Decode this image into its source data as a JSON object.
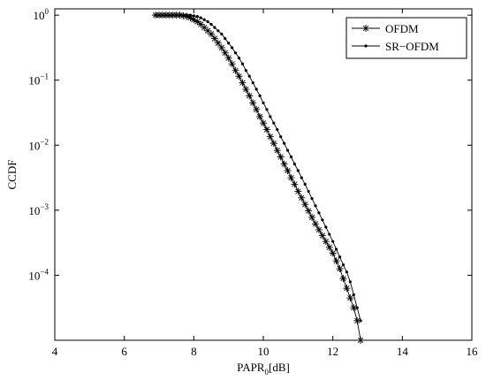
{
  "chart_data": {
    "type": "line",
    "xlabel": {
      "text": "PAPR",
      "subscript": "0",
      "suffix": "[dB]"
    },
    "ylabel": "CCDF",
    "log_y": true,
    "grid": false,
    "legend": "upper right",
    "xlim": [
      4,
      16
    ],
    "xticks": [
      4,
      6,
      8,
      10,
      12,
      14,
      16
    ],
    "ylim": [
      1e-05,
      1.25
    ],
    "yticks": [
      {
        "value": 1,
        "label": "10",
        "exponent": "0"
      },
      {
        "value": 0.1,
        "label": "10",
        "exponent": "−1"
      },
      {
        "value": 0.01,
        "label": "10",
        "exponent": "−2"
      },
      {
        "value": 0.001,
        "label": "10",
        "exponent": "−3"
      },
      {
        "value": 0.0001,
        "label": "10",
        "exponent": "−4"
      }
    ],
    "x": [
      6.9,
      7.0,
      7.1,
      7.2,
      7.3,
      7.4,
      7.5,
      7.6,
      7.7,
      7.8,
      7.9,
      8.0,
      8.1,
      8.2,
      8.3,
      8.4,
      8.5,
      8.6,
      8.7,
      8.8,
      8.9,
      9.0,
      9.1,
      9.2,
      9.3,
      9.4,
      9.5,
      9.6,
      9.7,
      9.8,
      9.9,
      10.0,
      10.1,
      10.2,
      10.3,
      10.4,
      10.5,
      10.6,
      10.7,
      10.8,
      10.9,
      11.0,
      11.1,
      11.2,
      11.3,
      11.4,
      11.5,
      11.6,
      11.7,
      11.8,
      11.9,
      12.0,
      12.1,
      12.2,
      12.3,
      12.4,
      12.5,
      12.6,
      12.7,
      12.8
    ],
    "series": [
      {
        "name": "OFDM",
        "color": "#000000",
        "marker": "asterisk",
        "values": [
          1,
          1,
          1,
          1,
          1,
          1,
          1,
          1,
          0.977,
          0.955,
          0.912,
          0.851,
          0.794,
          0.724,
          0.646,
          0.575,
          0.513,
          0.437,
          0.372,
          0.316,
          0.263,
          0.219,
          0.178,
          0.141,
          0.115,
          0.0912,
          0.0724,
          0.0575,
          0.0447,
          0.0355,
          0.0275,
          0.0219,
          0.0174,
          0.0135,
          0.0107,
          0.00832,
          0.00661,
          0.00513,
          0.00407,
          0.00316,
          0.00251,
          0.00195,
          0.00155,
          0.00123,
          0.000977,
          0.000776,
          0.000617,
          0.000501,
          0.000407,
          0.000331,
          0.000269,
          0.000219,
          0.000166,
          0.000126,
          8.91e-05,
          6.31e-05,
          4.47e-05,
          3.16e-05,
          2e-05,
          1e-05
        ]
      },
      {
        "name": "SR−OFDM",
        "color": "#000000",
        "marker": "dot",
        "values": [
          1,
          1,
          1,
          1,
          1,
          1,
          1,
          1,
          1,
          1,
          1,
          0.977,
          0.955,
          0.912,
          0.851,
          0.794,
          0.724,
          0.646,
          0.575,
          0.513,
          0.437,
          0.372,
          0.316,
          0.263,
          0.219,
          0.178,
          0.141,
          0.115,
          0.0912,
          0.0724,
          0.0575,
          0.0447,
          0.0355,
          0.0275,
          0.0219,
          0.0174,
          0.0135,
          0.0107,
          0.00832,
          0.00661,
          0.00513,
          0.00407,
          0.00316,
          0.00251,
          0.00195,
          0.00151,
          0.00117,
          0.000912,
          0.000708,
          0.00055,
          0.000427,
          0.000331,
          0.000251,
          0.000191,
          0.000145,
          0.000112,
          7.94e-05,
          5.01e-05,
          3.16e-05,
          2e-05
        ]
      }
    ]
  }
}
